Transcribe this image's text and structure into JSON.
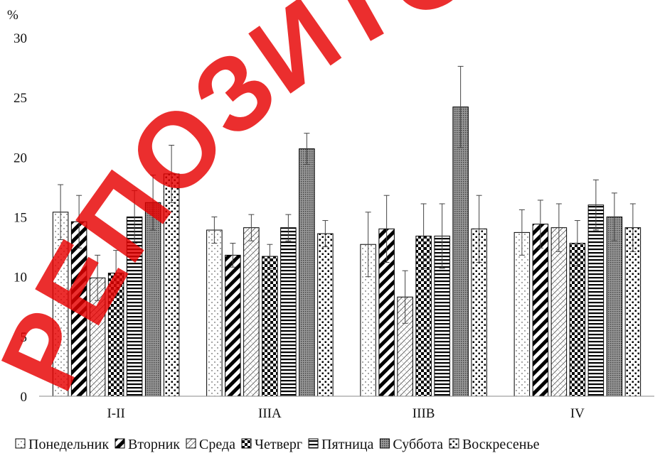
{
  "chart_data": {
    "type": "bar",
    "ylabel": "%",
    "ylim": [
      0,
      30
    ],
    "yticks": [
      "0",
      "5",
      "10",
      "15",
      "20",
      "25",
      "30"
    ],
    "categories": [
      "I-II",
      "IIIA",
      "IIIB",
      "IV"
    ],
    "grid": false,
    "legend_position": "bottom",
    "error_bars": true,
    "series": [
      {
        "name": "Понедельник",
        "pattern": "dots-sparse",
        "values": [
          15.4,
          13.9,
          12.7,
          13.7
        ],
        "errors": [
          2.3,
          1.1,
          2.7,
          1.9
        ]
      },
      {
        "name": "Вторник",
        "pattern": "wide-diagonal",
        "values": [
          14.6,
          11.8,
          14.0,
          14.4
        ],
        "errors": [
          2.2,
          1.0,
          2.8,
          2.0
        ]
      },
      {
        "name": "Среда",
        "pattern": "diagonal-cross-light",
        "values": [
          9.9,
          14.1,
          8.3,
          14.1
        ],
        "errors": [
          1.9,
          1.1,
          2.2,
          2.0
        ]
      },
      {
        "name": "Четверг",
        "pattern": "checkerboard",
        "values": [
          10.3,
          11.7,
          13.4,
          12.8
        ],
        "errors": [
          1.9,
          1.0,
          2.7,
          1.9
        ]
      },
      {
        "name": "Пятница",
        "pattern": "horizontal-lines",
        "values": [
          15.0,
          14.1,
          13.4,
          16.0
        ],
        "errors": [
          2.2,
          1.1,
          2.7,
          2.1
        ]
      },
      {
        "name": "Суббота",
        "pattern": "dense-dots",
        "values": [
          16.2,
          20.7,
          24.2,
          15.0
        ],
        "errors": [
          2.3,
          1.3,
          3.4,
          2.0
        ]
      },
      {
        "name": "Воскресенье",
        "pattern": "large-dots",
        "values": [
          18.6,
          13.6,
          14.0,
          14.1
        ],
        "errors": [
          2.4,
          1.1,
          2.8,
          2.0
        ]
      }
    ]
  },
  "watermark_text": "РЕПОЗИТОРИЙ"
}
